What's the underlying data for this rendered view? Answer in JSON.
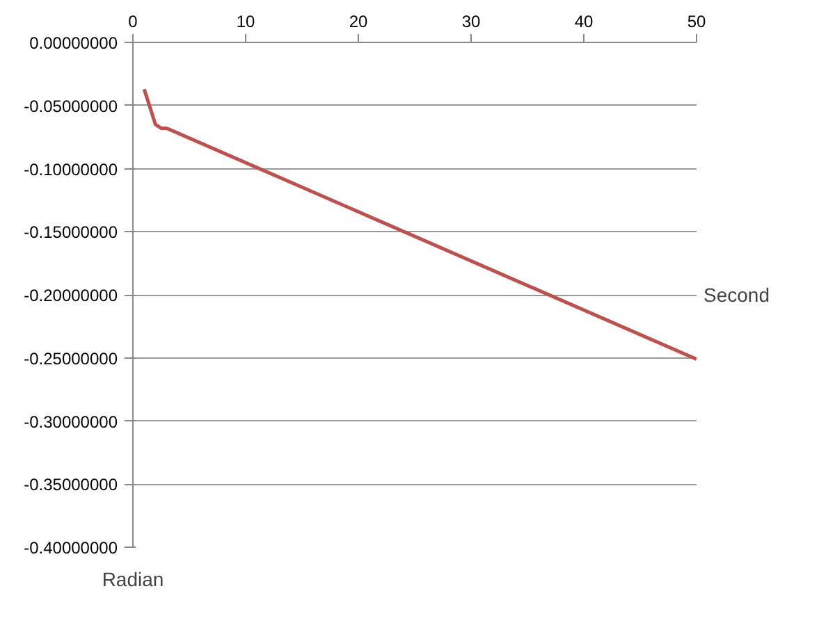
{
  "chart_data": {
    "type": "line",
    "xlabel": "Second",
    "ylabel": "Radian",
    "x": [
      1,
      2,
      2.5,
      3,
      50
    ],
    "series": [
      {
        "color": "#c0504d",
        "values": [
          -0.037,
          -0.065,
          -0.068,
          -0.068,
          -0.251
        ]
      }
    ],
    "xlim": [
      0,
      50
    ],
    "xticks": [
      0,
      10,
      20,
      30,
      40,
      50
    ],
    "ylim": [
      -0.4,
      0
    ],
    "yticks": [
      {
        "value": 0,
        "label": "0.00000000"
      },
      {
        "value": -0.05,
        "label": "-0.05000000"
      },
      {
        "value": -0.1,
        "label": "-0.10000000"
      },
      {
        "value": -0.15,
        "label": "-0.15000000"
      },
      {
        "value": -0.2,
        "label": "-0.20000000"
      },
      {
        "value": -0.25,
        "label": "-0.25000000"
      },
      {
        "value": -0.3,
        "label": "-0.30000000"
      },
      {
        "value": -0.35,
        "label": "-0.35000000"
      },
      {
        "value": -0.4,
        "label": "-0.40000000"
      }
    ],
    "grid": "y",
    "line_style": "solid"
  }
}
